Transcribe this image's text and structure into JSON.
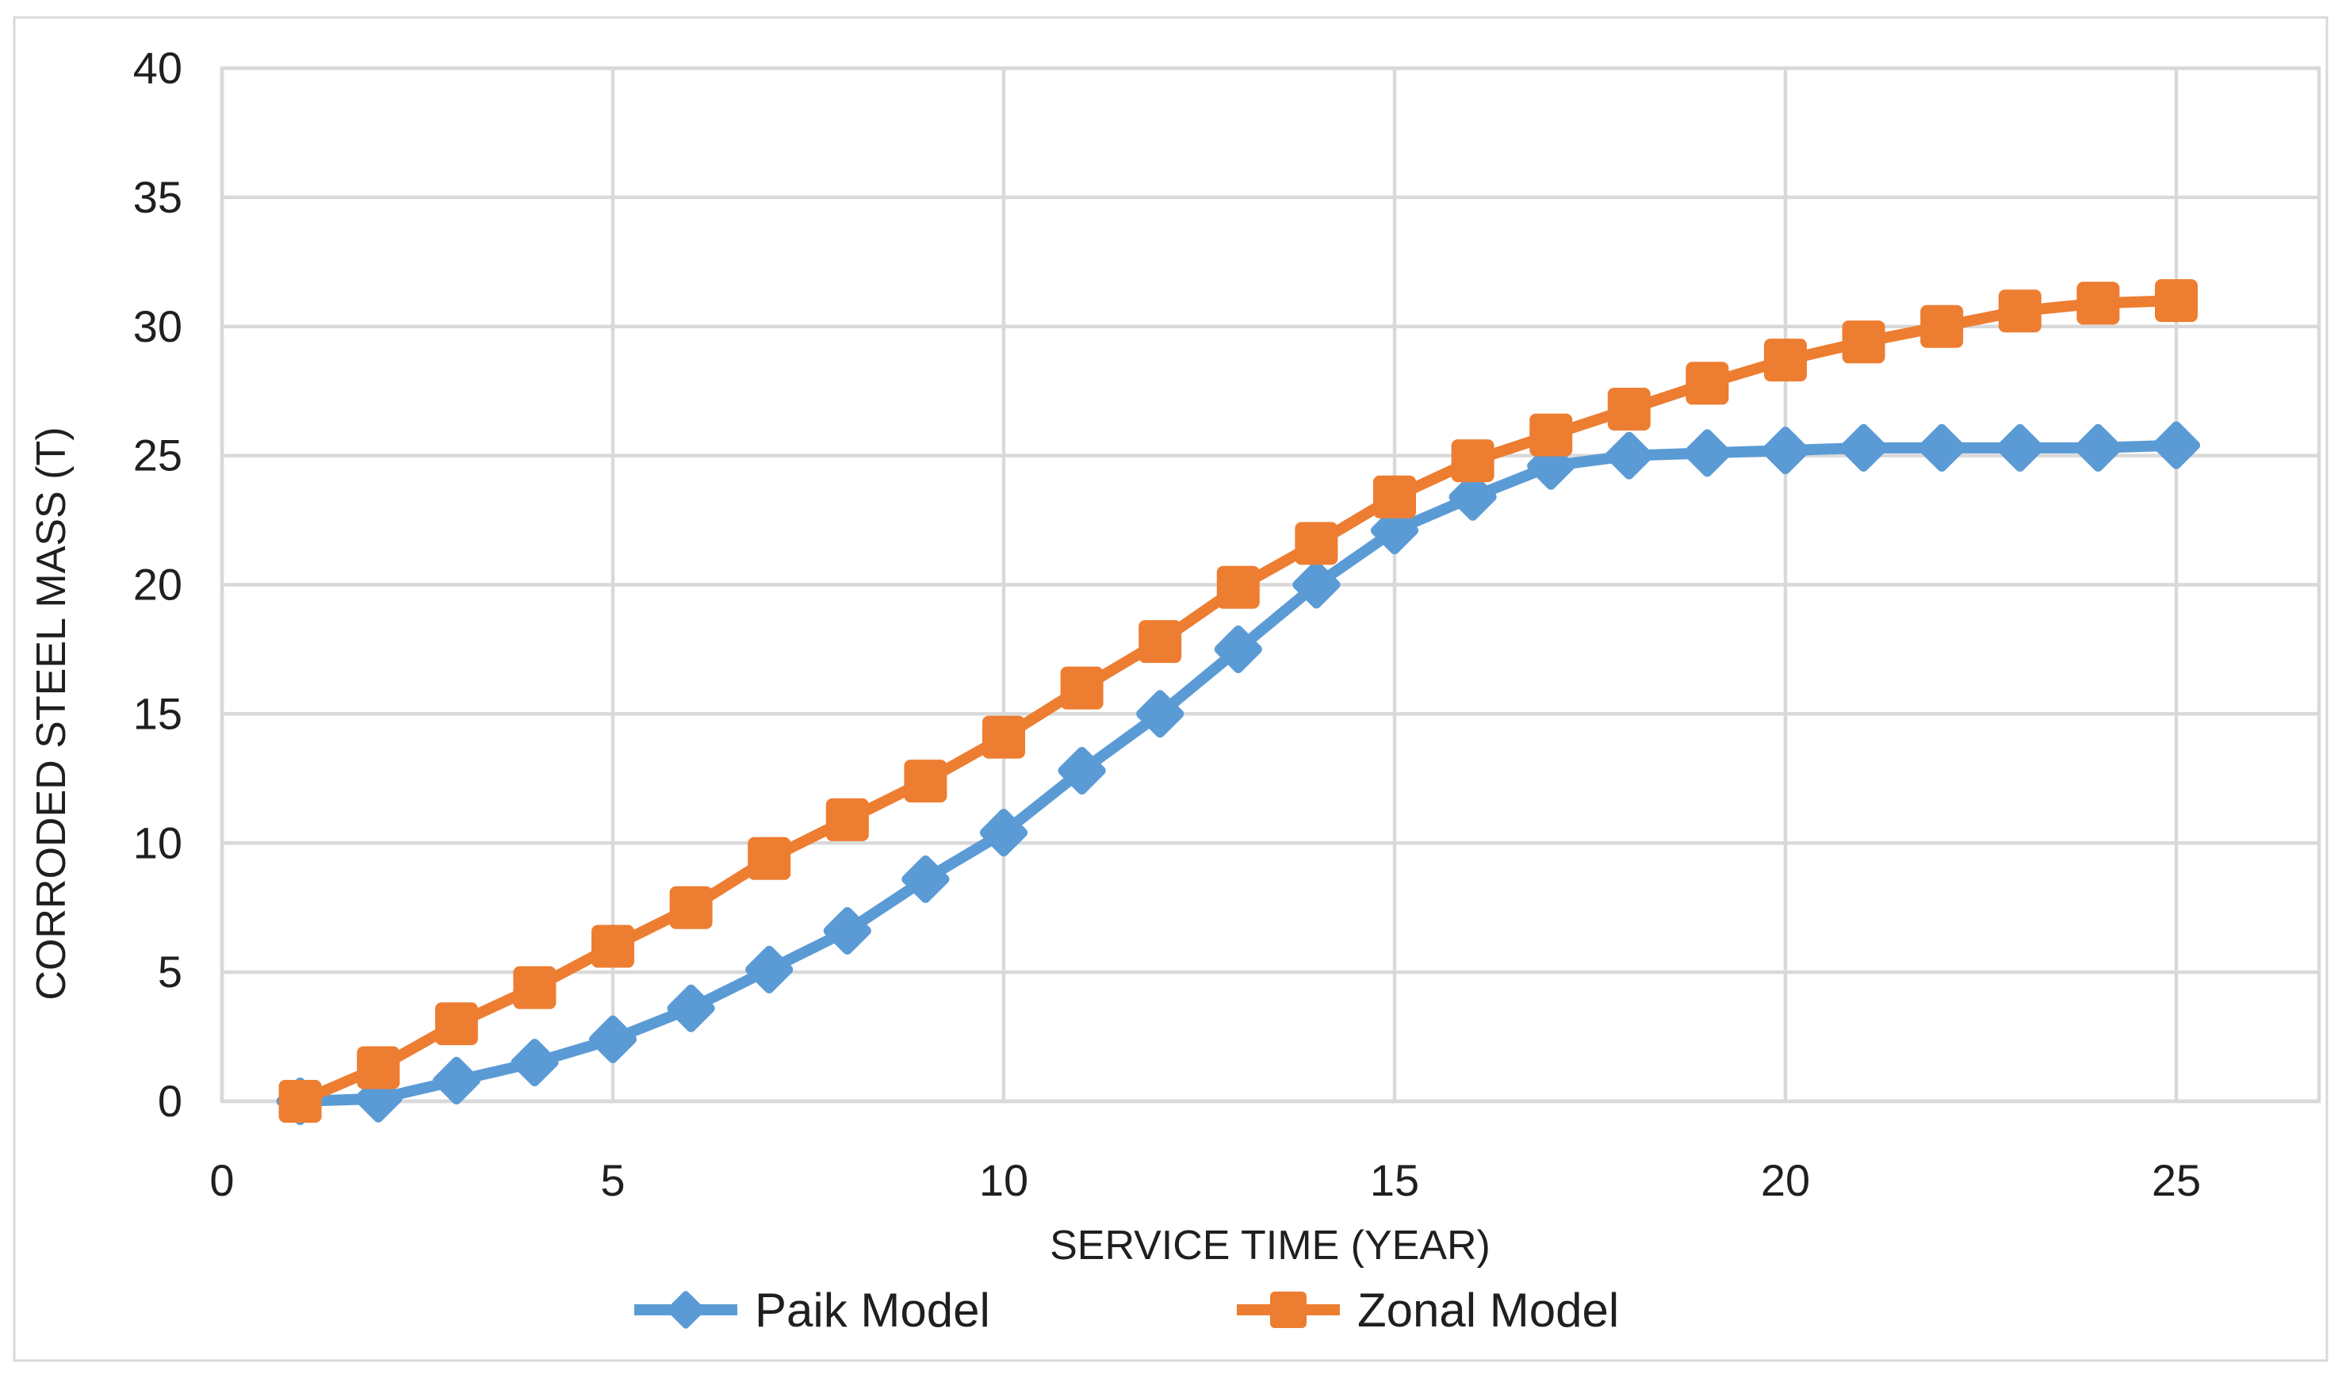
{
  "figure": {
    "background_color": "#FFFFFF",
    "outer_border_color": "#D9D9D9"
  },
  "chart_data": {
    "type": "line",
    "x": [
      1,
      2,
      3,
      4,
      5,
      6,
      7,
      8,
      9,
      10,
      11,
      12,
      13,
      14,
      15,
      16,
      17,
      18,
      19,
      20,
      21,
      22,
      23,
      24,
      25
    ],
    "series": [
      {
        "name": "Paik Model",
        "color": "#5B9BD5",
        "marker": "diamond",
        "values": [
          0,
          0.1,
          0.8,
          1.5,
          2.4,
          3.6,
          5.1,
          6.6,
          8.6,
          10.4,
          12.8,
          15.0,
          17.5,
          20.0,
          22.1,
          23.4,
          24.6,
          25.0,
          25.1,
          25.2,
          25.3,
          25.3,
          25.3,
          25.3,
          25.4
        ]
      },
      {
        "name": "Zonal Model",
        "color": "#ED7D31",
        "marker": "square",
        "values": [
          0,
          1.3,
          3.0,
          4.4,
          6.0,
          7.5,
          9.4,
          10.9,
          12.4,
          14.1,
          16.0,
          17.8,
          19.9,
          21.6,
          23.4,
          24.8,
          25.8,
          26.8,
          27.8,
          28.7,
          29.4,
          30.0,
          30.6,
          30.9,
          31.0
        ]
      }
    ],
    "title": "",
    "xlabel": "SERVICE TIME (YEAR)",
    "ylabel": "CORRODED STEEL MASS (T)",
    "xlim": [
      0,
      26.9
    ],
    "ylim": [
      0,
      40
    ],
    "x_ticks": [
      0,
      5,
      10,
      15,
      20,
      25
    ],
    "y_ticks": [
      0,
      5,
      10,
      15,
      20,
      25,
      30,
      35,
      40
    ],
    "grid": true,
    "gridline_color": "#D9D9D9",
    "text_color": "#1F1F1F",
    "legend_position": "bottom"
  }
}
